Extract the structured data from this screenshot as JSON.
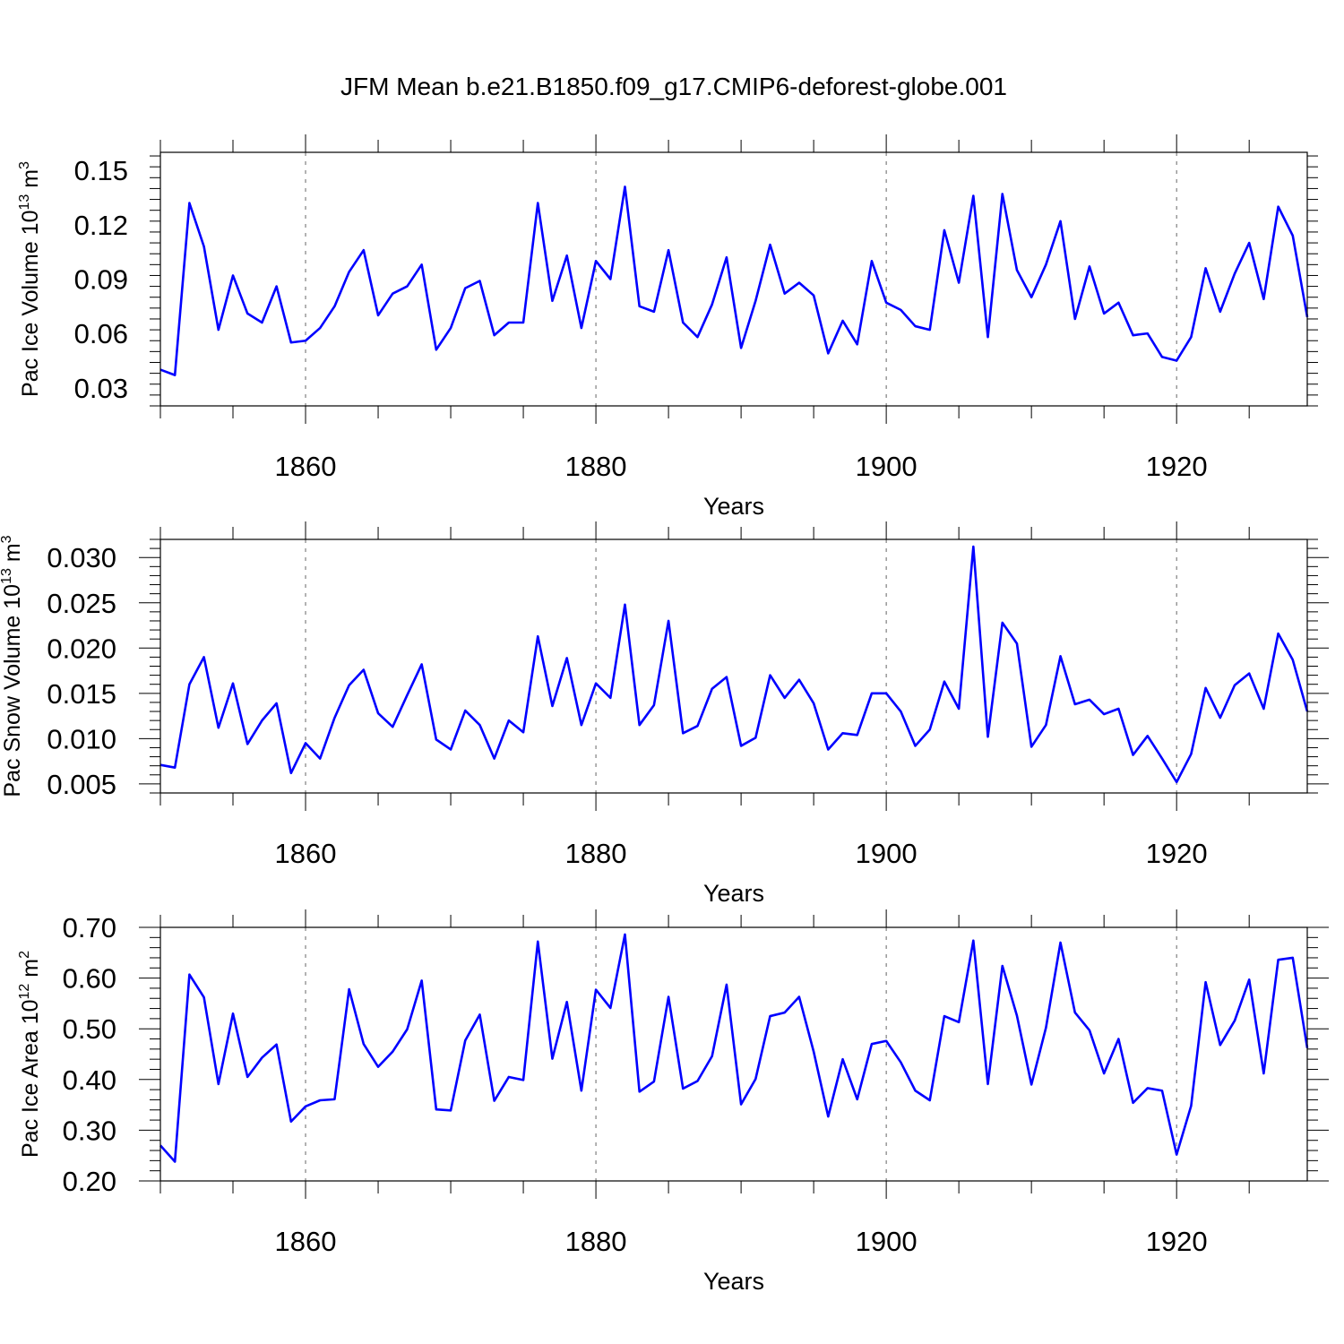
{
  "title": "JFM Mean b.e21.B1850.f09_g17.CMIP6-deforest-globe.001",
  "line_color": "#0000ff",
  "chart_data": [
    {
      "type": "line",
      "name": "ice-volume",
      "ylabel": "Pac Ice Volume 10",
      "ylabel_exp": "13",
      "ylabel_unit": " m",
      "ylabel_unit_exp": "3",
      "xlabel": "Years",
      "xlim": [
        1850,
        1929
      ],
      "ylim": [
        0.02,
        0.16
      ],
      "xticks": [
        1860,
        1880,
        1900,
        1920
      ],
      "xtick_labels": [
        "1860",
        "1880",
        "1900",
        "1920"
      ],
      "yticks": [
        0.03,
        0.06,
        0.09,
        0.12,
        0.15
      ],
      "ytick_labels": [
        "0.03",
        "0.06",
        "0.09",
        "0.12",
        "0.15"
      ],
      "x_start": 1850,
      "values": [
        0.04,
        0.037,
        0.132,
        0.108,
        0.062,
        0.092,
        0.071,
        0.066,
        0.086,
        0.055,
        0.056,
        0.063,
        0.075,
        0.094,
        0.106,
        0.07,
        0.082,
        0.086,
        0.098,
        0.051,
        0.063,
        0.085,
        0.089,
        0.059,
        0.066,
        0.066,
        0.132,
        0.078,
        0.103,
        0.063,
        0.1,
        0.09,
        0.141,
        0.075,
        0.072,
        0.106,
        0.066,
        0.058,
        0.076,
        0.102,
        0.052,
        0.078,
        0.109,
        0.082,
        0.088,
        0.081,
        0.049,
        0.067,
        0.054,
        0.1,
        0.077,
        0.073,
        0.064,
        0.062,
        0.117,
        0.088,
        0.136,
        0.058,
        0.137,
        0.095,
        0.08,
        0.098,
        0.122,
        0.068,
        0.097,
        0.071,
        0.077,
        0.059,
        0.06,
        0.047,
        0.045,
        0.058,
        0.096,
        0.072,
        0.093,
        0.11,
        0.079,
        0.13,
        0.114,
        0.069
      ]
    },
    {
      "type": "line",
      "name": "snow-volume",
      "ylabel": "Pac Snow Volume 10",
      "ylabel_exp": "13",
      "ylabel_unit": " m",
      "ylabel_unit_exp": "3",
      "xlabel": "Years",
      "xlim": [
        1850,
        1929
      ],
      "ylim": [
        0.004,
        0.032
      ],
      "xticks": [
        1860,
        1880,
        1900,
        1920
      ],
      "xtick_labels": [
        "1860",
        "1880",
        "1900",
        "1920"
      ],
      "yticks": [
        0.005,
        0.01,
        0.015,
        0.02,
        0.025,
        0.03
      ],
      "ytick_labels": [
        "0.005",
        "0.010",
        "0.015",
        "0.020",
        "0.025",
        "0.030"
      ],
      "x_start": 1850,
      "values": [
        0.0071,
        0.0068,
        0.016,
        0.019,
        0.0112,
        0.0161,
        0.0094,
        0.012,
        0.0139,
        0.0062,
        0.0095,
        0.0078,
        0.0123,
        0.0159,
        0.0176,
        0.0128,
        0.0113,
        0.0148,
        0.0182,
        0.0099,
        0.0088,
        0.0131,
        0.0115,
        0.0078,
        0.012,
        0.0107,
        0.0213,
        0.0136,
        0.0189,
        0.0115,
        0.0161,
        0.0145,
        0.0248,
        0.0115,
        0.0137,
        0.023,
        0.0106,
        0.0114,
        0.0155,
        0.0168,
        0.0092,
        0.0101,
        0.017,
        0.0145,
        0.0165,
        0.0139,
        0.0088,
        0.0106,
        0.0104,
        0.015,
        0.015,
        0.013,
        0.0092,
        0.011,
        0.0163,
        0.0133,
        0.0312,
        0.0102,
        0.0228,
        0.0205,
        0.0091,
        0.0115,
        0.0191,
        0.0138,
        0.0143,
        0.0127,
        0.0133,
        0.0082,
        0.0103,
        0.0078,
        0.0052,
        0.0083,
        0.0156,
        0.0123,
        0.0159,
        0.0172,
        0.0133,
        0.0216,
        0.0187,
        0.013
      ]
    },
    {
      "type": "line",
      "name": "ice-area",
      "ylabel": "Pac Ice Area 10",
      "ylabel_exp": "12",
      "ylabel_unit": " m",
      "ylabel_unit_exp": "2",
      "xlabel": "Years",
      "xlim": [
        1850,
        1929
      ],
      "ylim": [
        0.2,
        0.7
      ],
      "xticks": [
        1860,
        1880,
        1900,
        1920
      ],
      "xtick_labels": [
        "1860",
        "1880",
        "1900",
        "1920"
      ],
      "yticks": [
        0.2,
        0.3,
        0.4,
        0.5,
        0.6,
        0.7
      ],
      "ytick_labels": [
        "0.20",
        "0.30",
        "0.40",
        "0.50",
        "0.60",
        "0.70"
      ],
      "x_start": 1850,
      "values": [
        0.27,
        0.238,
        0.607,
        0.562,
        0.391,
        0.53,
        0.405,
        0.443,
        0.469,
        0.317,
        0.347,
        0.359,
        0.361,
        0.578,
        0.47,
        0.425,
        0.455,
        0.499,
        0.595,
        0.341,
        0.339,
        0.477,
        0.528,
        0.358,
        0.405,
        0.399,
        0.672,
        0.441,
        0.553,
        0.378,
        0.577,
        0.541,
        0.686,
        0.376,
        0.396,
        0.563,
        0.382,
        0.397,
        0.446,
        0.587,
        0.351,
        0.401,
        0.525,
        0.532,
        0.563,
        0.455,
        0.327,
        0.44,
        0.361,
        0.47,
        0.476,
        0.434,
        0.378,
        0.359,
        0.525,
        0.513,
        0.674,
        0.391,
        0.624,
        0.526,
        0.39,
        0.502,
        0.67,
        0.532,
        0.497,
        0.412,
        0.48,
        0.354,
        0.383,
        0.378,
        0.252,
        0.348,
        0.592,
        0.468,
        0.516,
        0.597,
        0.412,
        0.636,
        0.64,
        0.462
      ]
    }
  ]
}
